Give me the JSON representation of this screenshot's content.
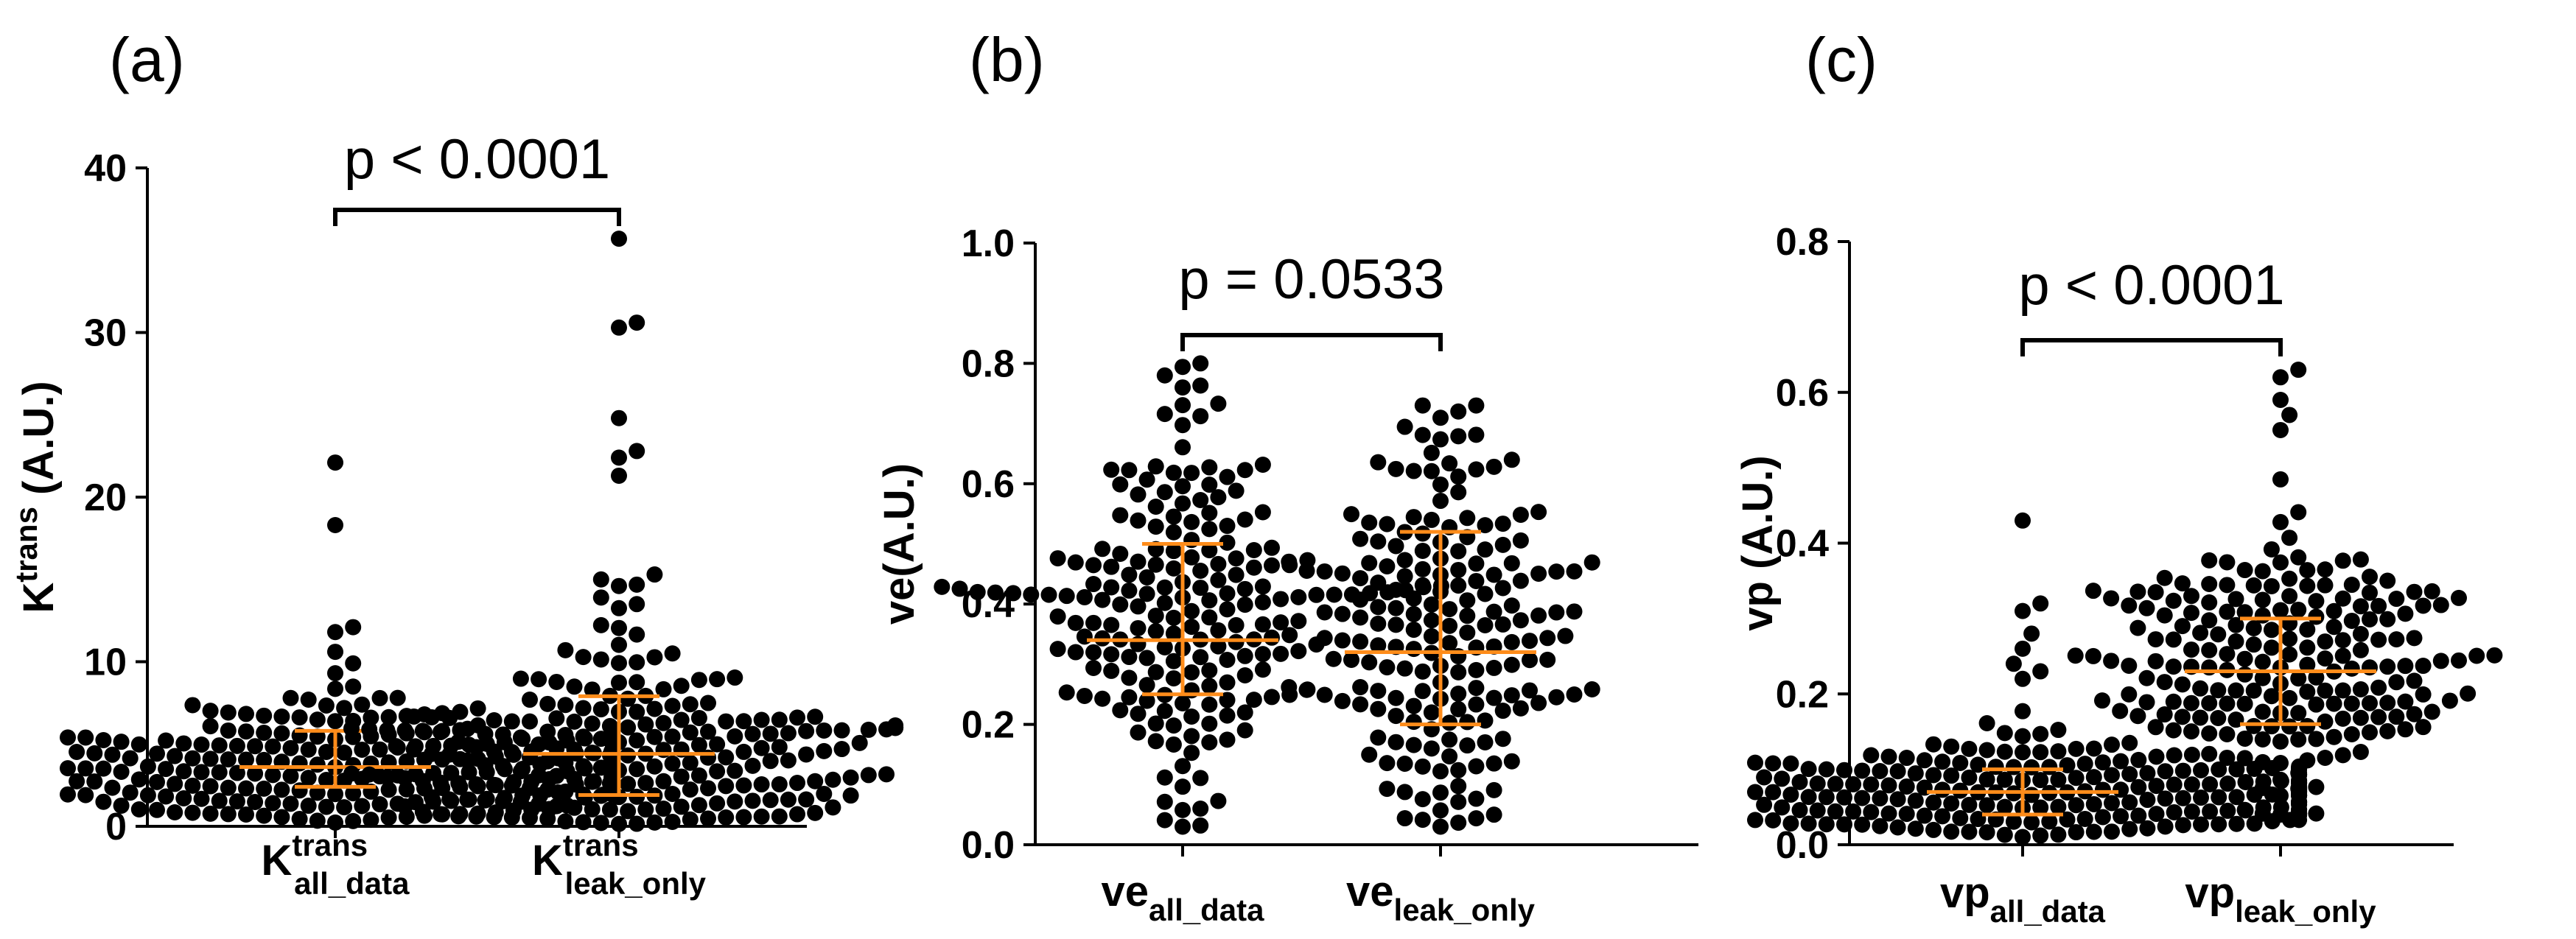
{
  "chart_data": [
    {
      "type": "scatter",
      "panel": "(a)",
      "ylabel_main": "K",
      "ylabel_sup": "trans",
      "ylabel_rest": " (A.U.)",
      "ylim": [
        0,
        40
      ],
      "yticks": [
        "0",
        "10",
        "20",
        "30",
        "40"
      ],
      "categories": [
        {
          "main": "K",
          "sup": "trans",
          "sub": "all_data"
        },
        {
          "main": "K",
          "sup": "trans",
          "sub": "leak_only"
        }
      ],
      "comparison": {
        "from": 0,
        "to": 1,
        "label": "p < 0.0001"
      },
      "groups": [
        {
          "median": 3.6,
          "q1": 2.4,
          "q3": 5.8,
          "n": 260,
          "center": 3.4,
          "spread": 1.9,
          "min": 0.1,
          "max": 12.2,
          "outliers": [
            22.1,
            18.3,
            12.1,
            11.8,
            10.6,
            9.9,
            9.3
          ]
        },
        {
          "median": 4.4,
          "q1": 1.9,
          "q3": 7.9,
          "n": 230,
          "center": 4.0,
          "spread": 3.6,
          "min": 0.1,
          "max": 15.3,
          "outliers": [
            35.7,
            30.6,
            30.3,
            24.8,
            22.8,
            22.4,
            21.3,
            15.3,
            15.0,
            14.6,
            13.9,
            13.5
          ]
        }
      ]
    },
    {
      "type": "scatter",
      "panel": "(b)",
      "ylabel_main": "ve(A.U.)",
      "ylim": [
        0,
        1.0
      ],
      "yticks": [
        "0.0",
        "0.2",
        "0.4",
        "0.6",
        "0.8",
        "1.0"
      ],
      "categories": [
        {
          "main": "ve",
          "sub": "all_data"
        },
        {
          "main": "ve",
          "sub": "leak_only"
        }
      ],
      "comparison": {
        "from": 0,
        "to": 1,
        "label": "p = 0.0533"
      },
      "groups": [
        {
          "median": 0.34,
          "q1": 0.25,
          "q3": 0.5,
          "n": 200,
          "center": 0.37,
          "spread": 0.15,
          "min": 0.03,
          "max": 0.8,
          "outliers": [
            0.8,
            0.78,
            0.76,
            0.03,
            0.06
          ]
        },
        {
          "median": 0.32,
          "q1": 0.2,
          "q3": 0.52,
          "n": 190,
          "center": 0.36,
          "spread": 0.17,
          "min": 0.03,
          "max": 0.73,
          "outliers": [
            0.73,
            0.73,
            0.72,
            0.03,
            0.05
          ]
        }
      ]
    },
    {
      "type": "scatter",
      "panel": "(c)",
      "ylabel_main": "vp (A.U.)",
      "ylim": [
        0,
        0.8
      ],
      "yticks": [
        "0.0",
        "0.2",
        "0.4",
        "0.6",
        "0.8"
      ],
      "categories": [
        {
          "main": "vp",
          "sub": "all_data"
        },
        {
          "main": "vp",
          "sub": "leak_only"
        }
      ],
      "comparison": {
        "from": 0,
        "to": 1,
        "label": "p < 0.0001"
      },
      "groups": [
        {
          "median": 0.07,
          "q1": 0.04,
          "q3": 0.1,
          "n": 240,
          "center": 0.07,
          "spread": 0.035,
          "min": 0.01,
          "max": 0.2,
          "outliers": [
            0.43,
            0.32,
            0.31,
            0.28,
            0.26,
            0.24,
            0.23,
            0.22
          ]
        },
        {
          "median": 0.23,
          "q1": 0.16,
          "q3": 0.3,
          "n": 210,
          "center": 0.24,
          "spread": 0.09,
          "min": 0.04,
          "max": 0.5,
          "outliers": [
            0.63,
            0.62,
            0.59,
            0.57,
            0.55,
            0.04,
            0.04
          ]
        }
      ]
    }
  ],
  "colors": {
    "points": "#000000",
    "median_line": "#ff8c1a",
    "axis": "#000000"
  }
}
